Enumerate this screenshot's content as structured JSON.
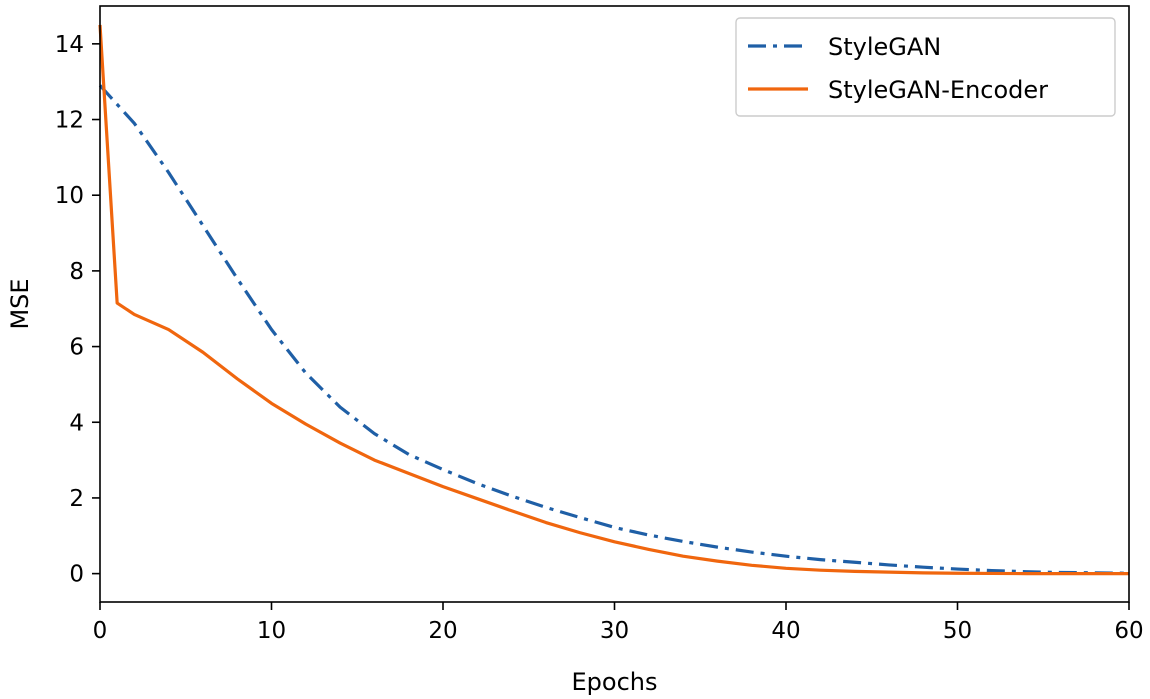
{
  "chart_data": {
    "type": "line",
    "title": "",
    "xlabel": "Epochs",
    "ylabel": "MSE",
    "xlim": [
      0,
      60
    ],
    "ylim": [
      -0.75,
      15.0
    ],
    "xticks": [
      0,
      10,
      20,
      30,
      40,
      50,
      60
    ],
    "yticks": [
      0,
      2,
      4,
      6,
      8,
      10,
      12,
      14
    ],
    "grid": false,
    "legend_position": "top-right",
    "series": [
      {
        "name": "StyleGAN",
        "color": "#1f5fa6",
        "style": "dash-dot",
        "x": [
          0,
          2,
          4,
          6,
          8,
          10,
          12,
          14,
          16,
          18,
          20,
          22,
          24,
          26,
          28,
          30,
          32,
          34,
          36,
          38,
          40,
          42,
          44,
          46,
          48,
          50,
          52,
          54,
          56,
          58,
          60
        ],
        "y": [
          12.9,
          11.9,
          10.6,
          9.2,
          7.8,
          6.45,
          5.3,
          4.4,
          3.7,
          3.15,
          2.75,
          2.38,
          2.05,
          1.75,
          1.48,
          1.22,
          1.02,
          0.85,
          0.7,
          0.57,
          0.46,
          0.37,
          0.3,
          0.23,
          0.17,
          0.12,
          0.08,
          0.05,
          0.03,
          0.02,
          0.01
        ]
      },
      {
        "name": "StyleGAN-Encoder",
        "color": "#f0660e",
        "style": "solid",
        "x": [
          0,
          1,
          2,
          4,
          6,
          8,
          10,
          12,
          14,
          16,
          18,
          20,
          22,
          24,
          26,
          28,
          30,
          32,
          34,
          36,
          38,
          40,
          42,
          44,
          46,
          48,
          50,
          52,
          54,
          56,
          58,
          60
        ],
        "y": [
          14.5,
          7.15,
          6.85,
          6.45,
          5.85,
          5.15,
          4.5,
          3.95,
          3.45,
          3.0,
          2.65,
          2.3,
          1.98,
          1.66,
          1.35,
          1.08,
          0.84,
          0.64,
          0.46,
          0.33,
          0.22,
          0.14,
          0.09,
          0.06,
          0.04,
          0.02,
          0.01,
          0.005,
          0.0,
          0.0,
          0.0,
          0.0
        ]
      }
    ]
  }
}
